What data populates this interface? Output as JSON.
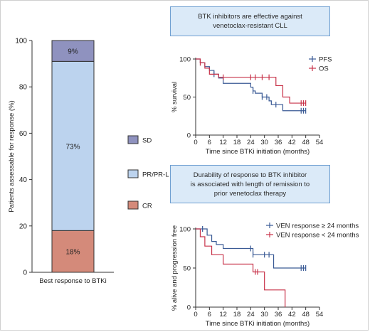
{
  "colors": {
    "sd": "#8f92bf",
    "pr": "#bcd3ee",
    "cr": "#d48a7a",
    "pfs": "#3a5a95",
    "os": "#c8334a",
    "ven_ge24": "#3a5a95",
    "ven_lt24": "#c8334a",
    "callout_fill": "#dbeaf8",
    "callout_border": "#6f9fd1"
  },
  "callouts": {
    "top": [
      "BTK inhibitors are effective against",
      "venetoclax-resistant CLL"
    ],
    "bottom": [
      "Durability of response to BTK inhibitor",
      "is associated with length of remission to",
      "prior venetoclax therapy"
    ]
  },
  "chart_data": [
    {
      "type": "bar",
      "stacked": true,
      "ylabel": "Patients assessable for response (%)",
      "ylim": [
        0,
        100
      ],
      "yticks": [
        "0",
        "20",
        "40",
        "60",
        "80",
        "100"
      ],
      "categories": [
        "Best response to BTKi"
      ],
      "series": [
        {
          "name": "CR",
          "values": [
            18
          ],
          "label": "18%"
        },
        {
          "name": "PR/PR-L",
          "values": [
            73
          ],
          "label": "73%"
        },
        {
          "name": "SD",
          "values": [
            9
          ],
          "label": "9%"
        }
      ],
      "legend": "right",
      "legend_order": [
        "SD",
        "PR/PR-L",
        "CR"
      ]
    },
    {
      "type": "line",
      "step": true,
      "xlabel": "Time since BTKi initiation (months)",
      "ylabel": "% survival",
      "xlim": [
        0,
        54
      ],
      "ylim": [
        0,
        100
      ],
      "xticks": [
        "0",
        "6",
        "12",
        "18",
        "24",
        "30",
        "36",
        "42",
        "48",
        "54"
      ],
      "yticks": [
        "0",
        "50",
        "100"
      ],
      "legend": "top-right",
      "series": [
        {
          "name": "PFS",
          "x": [
            0,
            2,
            4,
            6,
            8,
            10,
            12,
            24,
            25,
            26,
            29,
            32,
            33,
            38,
            48
          ],
          "y": [
            100,
            95,
            90,
            85,
            80,
            75,
            68,
            63,
            58,
            55,
            50,
            45,
            40,
            32,
            32
          ],
          "censor_x": [
            8,
            25,
            29,
            31,
            35,
            46,
            47,
            48
          ]
        },
        {
          "name": "OS",
          "x": [
            0,
            2,
            4,
            6,
            10,
            33,
            35,
            38,
            41,
            45,
            48
          ],
          "y": [
            100,
            95,
            88,
            80,
            76,
            76,
            65,
            50,
            42,
            42,
            42
          ],
          "censor_x": [
            2,
            12,
            24,
            26,
            29,
            32,
            46,
            47,
            48
          ]
        }
      ]
    },
    {
      "type": "line",
      "step": true,
      "xlabel": "Time since BTKi initiation (months)",
      "ylabel": "% alive and progression free",
      "xlim": [
        0,
        54
      ],
      "ylim": [
        0,
        100
      ],
      "xticks": [
        "0",
        "6",
        "12",
        "18",
        "24",
        "30",
        "36",
        "42",
        "48",
        "54"
      ],
      "yticks": [
        "0",
        "50",
        "100"
      ],
      "legend": "top-right",
      "series": [
        {
          "name": "VEN response ≥ 24 months",
          "x": [
            0,
            5,
            7,
            9,
            12,
            25,
            29,
            34,
            48
          ],
          "y": [
            100,
            92,
            84,
            80,
            75,
            67,
            67,
            50,
            50
          ],
          "censor_x": [
            3,
            24,
            25,
            30,
            32,
            46,
            47,
            48
          ]
        },
        {
          "name": "VEN response < 24 months",
          "x": [
            0,
            2,
            4,
            7,
            12,
            25,
            30,
            39,
            39
          ],
          "y": [
            100,
            90,
            78,
            67,
            55,
            45,
            22,
            22,
            0
          ],
          "censor_x": [
            26,
            27
          ]
        }
      ]
    }
  ]
}
